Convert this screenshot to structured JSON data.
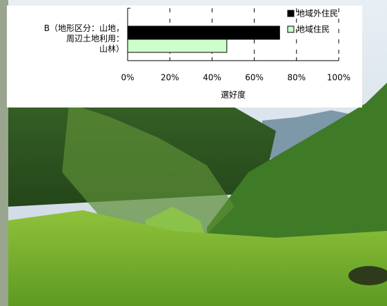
{
  "chart_data": {
    "type": "bar",
    "orientation": "horizontal",
    "categories": [
      "B（地形区分：山地，\n周辺土地利用：\n山林）"
    ],
    "series": [
      {
        "name": "地域外住民",
        "color": "#000000",
        "values": [
          72
        ]
      },
      {
        "name": "地域住民",
        "color": "#ccffcc",
        "values": [
          47
        ]
      }
    ],
    "xlim": [
      0,
      100
    ],
    "xticks": [
      {
        "value": 0,
        "label": "0%"
      },
      {
        "value": 20,
        "label": "20%"
      },
      {
        "value": 40,
        "label": "40%"
      },
      {
        "value": 60,
        "label": "60%"
      },
      {
        "value": 80,
        "label": "80%"
      },
      {
        "value": 100,
        "label": "100%"
      }
    ],
    "xlabel": "選好度",
    "grid": true,
    "legend": "top-right"
  }
}
